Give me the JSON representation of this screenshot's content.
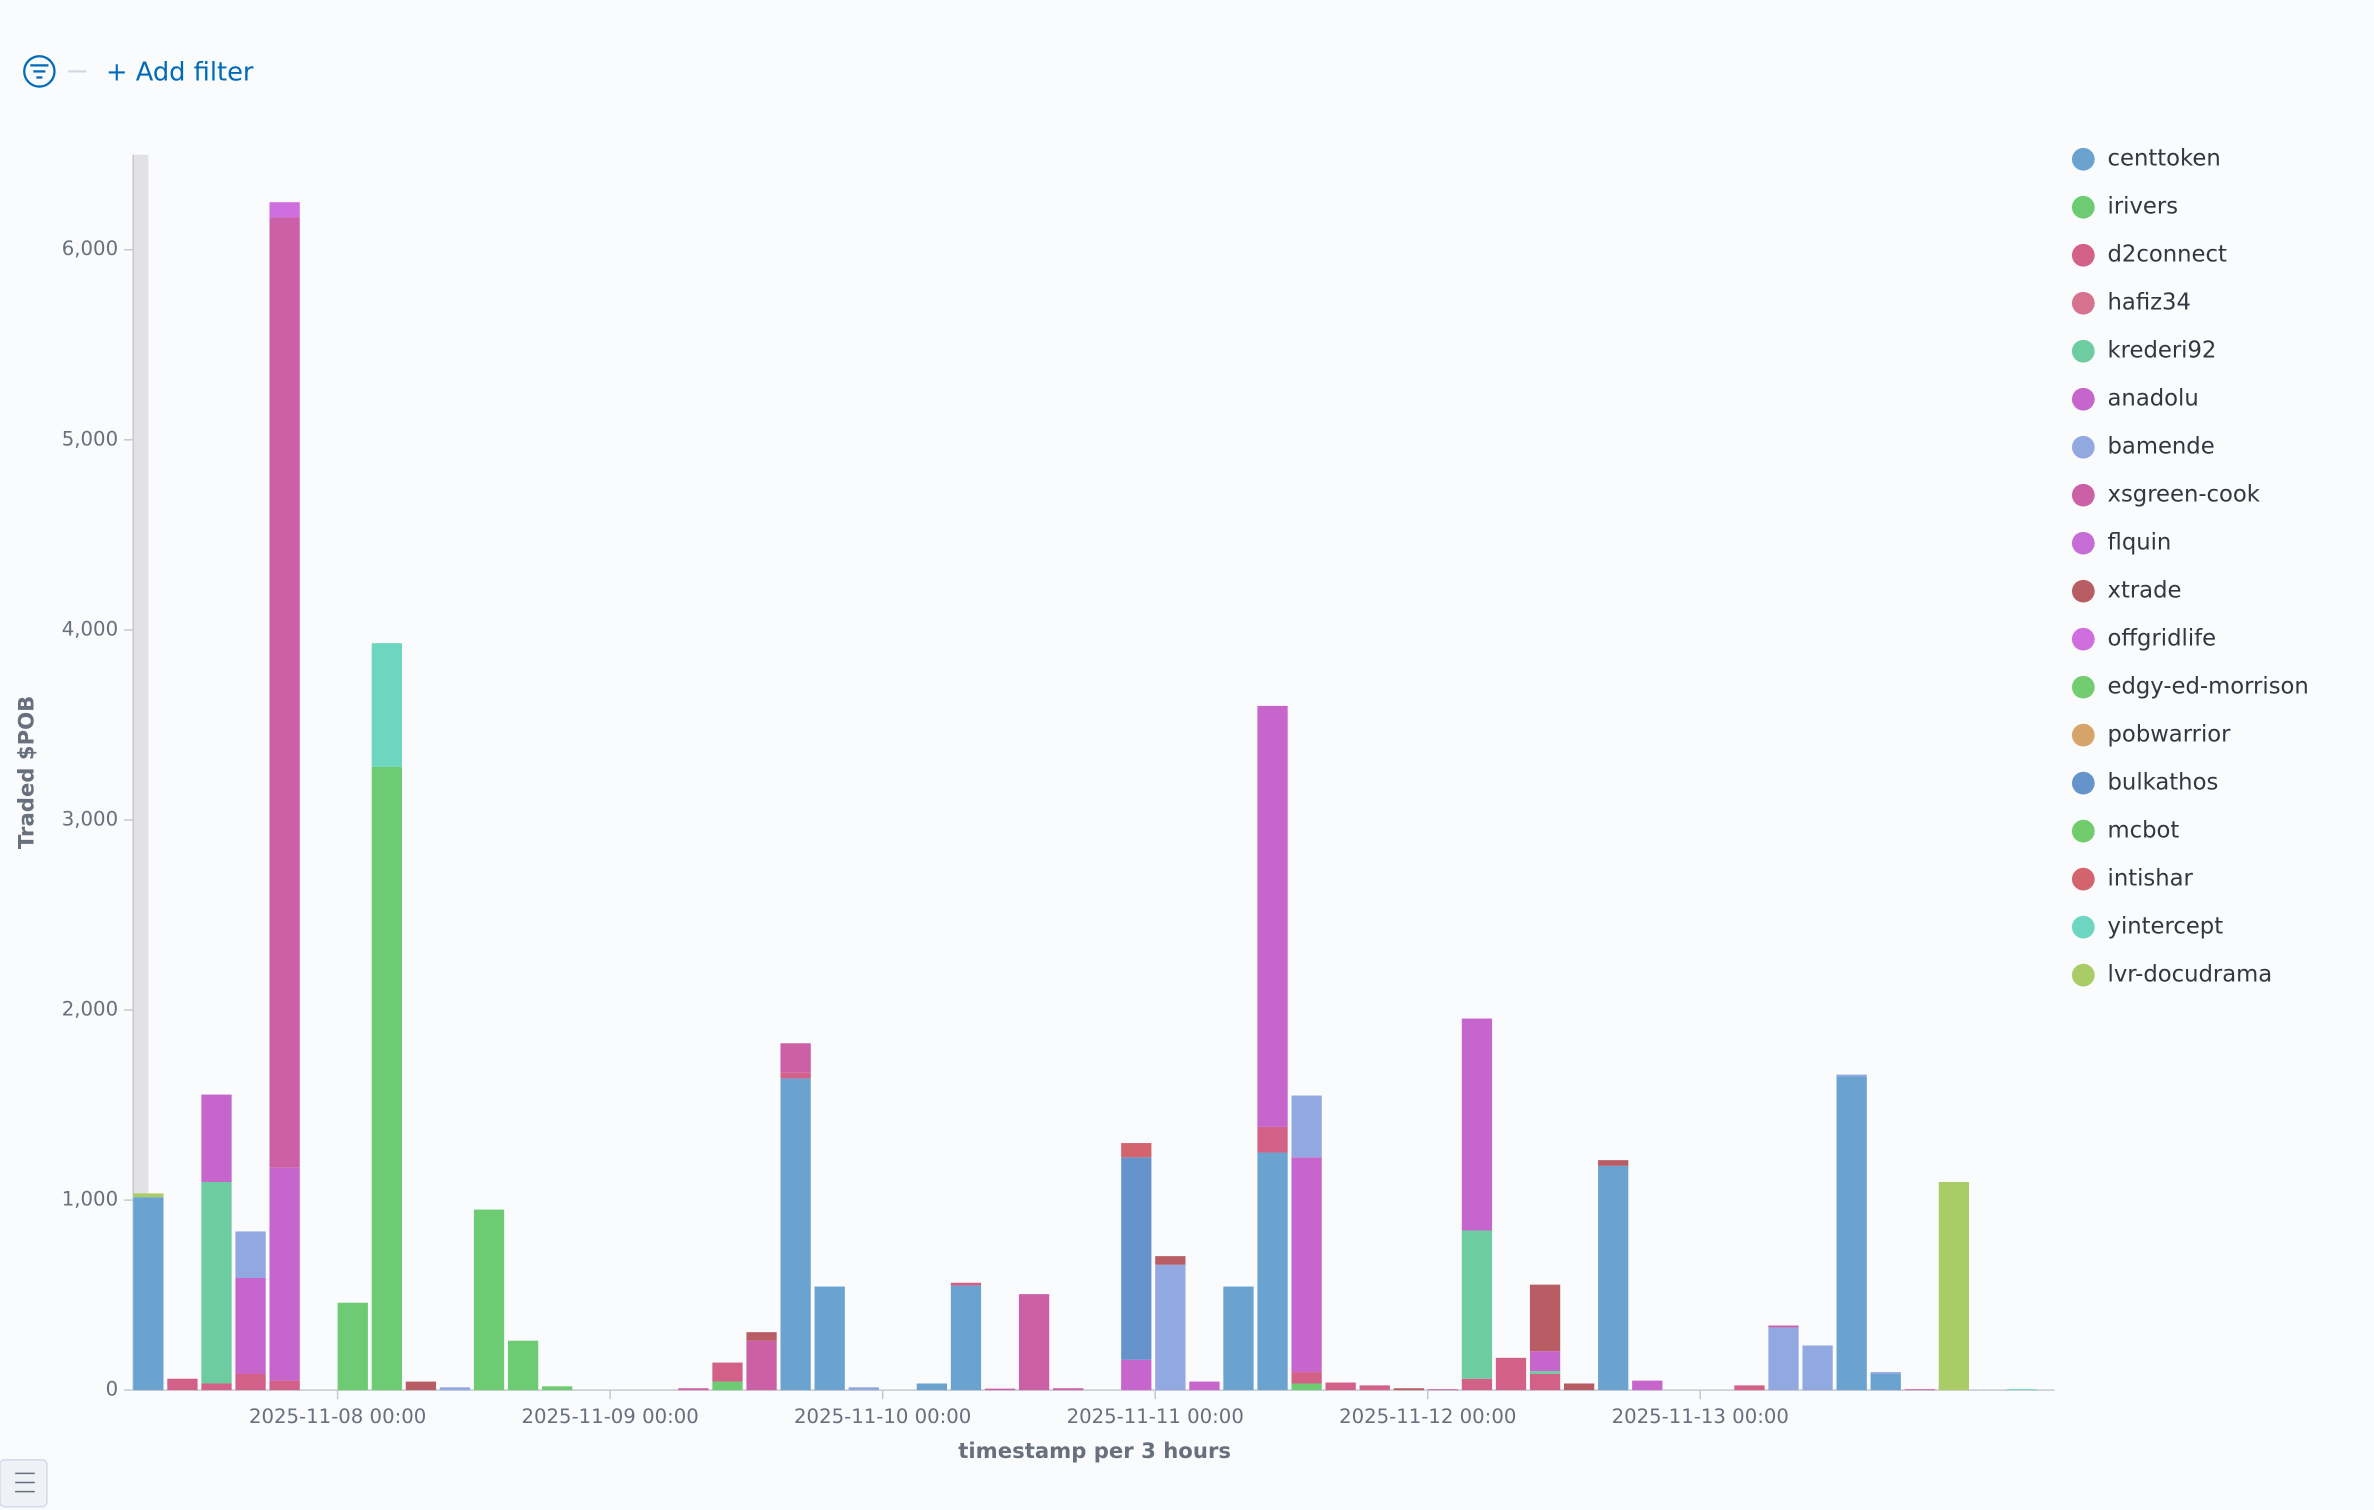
{
  "filter_bar": {
    "add_filter": "+ Add filter"
  },
  "chart_data": {
    "type": "stacked_bar",
    "y_label": "Traded $POB",
    "x_label": "timestamp per 3 hours",
    "categories": [
      null,
      null,
      null,
      null,
      null,
      null,
      "2025-11-08 00:00",
      null,
      null,
      null,
      null,
      null,
      null,
      null,
      "2025-11-09 00:00",
      null,
      null,
      null,
      null,
      null,
      null,
      null,
      "2025-11-10 00:00",
      null,
      null,
      null,
      null,
      null,
      null,
      null,
      "2025-11-11 00:00",
      null,
      null,
      null,
      null,
      null,
      null,
      null,
      "2025-11-12 00:00",
      null,
      null,
      null,
      null,
      null,
      null,
      null,
      "2025-11-13 00:00",
      null,
      null,
      null,
      null,
      null,
      null,
      null,
      null,
      null
    ],
    "ylim": [
      0,
      6500
    ],
    "yticks": [
      0,
      {
        "value": 1000,
        "label": "1,000"
      },
      {
        "value": 2000,
        "label": "2,000"
      },
      {
        "value": 3000,
        "label": "3,000"
      },
      {
        "value": 4000,
        "label": "4,000"
      },
      {
        "value": 5000,
        "label": "5,000"
      },
      {
        "value": 6000,
        "label": "6,000"
      }
    ],
    "grid": false,
    "legend": "right",
    "series": [
      {
        "name": "centtoken",
        "color": "#6aa3d0",
        "values": [
          1015,
          0,
          0,
          0,
          0,
          0,
          0,
          0,
          0,
          0,
          0,
          0,
          0,
          0,
          0,
          0,
          0,
          0,
          0,
          1640,
          545,
          0,
          0,
          35,
          550,
          0,
          0,
          0,
          0,
          0,
          0,
          0,
          545,
          1250,
          0,
          0,
          0,
          0,
          0,
          0,
          0,
          0,
          0,
          1180,
          0,
          0,
          0,
          0,
          0,
          0,
          1650,
          85,
          0,
          0,
          0,
          0
        ]
      },
      {
        "name": "irivers",
        "color": "#6dcc73",
        "values": [
          0,
          0,
          0,
          0,
          0,
          0,
          460,
          3280,
          0,
          0,
          950,
          260,
          20,
          0,
          0,
          0,
          0,
          45,
          0,
          0,
          0,
          0,
          0,
          0,
          0,
          0,
          0,
          0,
          0,
          0,
          0,
          0,
          0,
          0,
          35,
          0,
          0,
          0,
          0,
          0,
          0,
          0,
          0,
          0,
          0,
          0,
          0,
          0,
          0,
          0,
          0,
          0,
          0,
          0,
          0,
          0
        ]
      },
      {
        "name": "d2connect",
        "color": "#d36086",
        "values": [
          0,
          60,
          35,
          85,
          50,
          0,
          0,
          0,
          0,
          0,
          0,
          0,
          0,
          0,
          0,
          0,
          0,
          100,
          0,
          30,
          0,
          0,
          0,
          0,
          15,
          0,
          0,
          0,
          0,
          0,
          0,
          0,
          0,
          135,
          60,
          40,
          25,
          0,
          0,
          60,
          170,
          85,
          0,
          0,
          0,
          0,
          0,
          25,
          0,
          0,
          0,
          0,
          0,
          0,
          0,
          0
        ]
      },
      {
        "name": "hafiz34",
        "color": "#d6728e",
        "values": [
          0,
          0,
          0,
          0,
          0,
          0,
          0,
          0,
          0,
          0,
          0,
          0,
          0,
          0,
          0,
          0,
          0,
          0,
          0,
          0,
          0,
          0,
          0,
          0,
          0,
          0,
          0,
          0,
          0,
          0,
          0,
          0,
          0,
          0,
          0,
          0,
          0,
          0,
          0,
          0,
          0,
          0,
          0,
          0,
          0,
          0,
          0,
          0,
          0,
          0,
          0,
          0,
          0,
          0,
          0,
          0
        ]
      },
      {
        "name": "krederi92",
        "color": "#6dcca0",
        "values": [
          0,
          0,
          1060,
          0,
          0,
          0,
          0,
          0,
          0,
          0,
          0,
          0,
          0,
          0,
          0,
          0,
          0,
          0,
          0,
          0,
          0,
          0,
          0,
          0,
          0,
          0,
          0,
          0,
          0,
          0,
          0,
          0,
          0,
          0,
          0,
          0,
          0,
          0,
          0,
          780,
          0,
          15,
          0,
          0,
          0,
          0,
          0,
          0,
          0,
          0,
          0,
          0,
          0,
          0,
          0,
          0
        ]
      },
      {
        "name": "anadolu",
        "color": "#c666cc",
        "values": [
          0,
          0,
          460,
          505,
          1120,
          0,
          0,
          0,
          0,
          0,
          0,
          0,
          0,
          0,
          0,
          0,
          0,
          0,
          0,
          0,
          0,
          0,
          0,
          0,
          0,
          0,
          0,
          0,
          0,
          160,
          0,
          45,
          0,
          2215,
          1130,
          0,
          0,
          0,
          0,
          1115,
          0,
          105,
          0,
          0,
          50,
          0,
          0,
          0,
          0,
          0,
          0,
          0,
          0,
          0,
          0,
          0
        ]
      },
      {
        "name": "bamende",
        "color": "#92a8e0",
        "values": [
          0,
          0,
          0,
          245,
          0,
          0,
          0,
          0,
          0,
          15,
          0,
          0,
          0,
          0,
          0,
          0,
          0,
          0,
          0,
          0,
          0,
          15,
          0,
          0,
          0,
          0,
          0,
          0,
          0,
          0,
          660,
          0,
          0,
          0,
          325,
          0,
          0,
          0,
          0,
          0,
          0,
          0,
          0,
          0,
          0,
          0,
          0,
          0,
          330,
          235,
          10,
          10,
          0,
          0,
          0,
          0
        ]
      },
      {
        "name": "xsgreen-cook",
        "color": "#cc60a6",
        "values": [
          0,
          0,
          0,
          0,
          5000,
          0,
          0,
          0,
          0,
          0,
          0,
          0,
          0,
          0,
          0,
          0,
          10,
          0,
          260,
          155,
          0,
          0,
          0,
          0,
          0,
          8,
          505,
          10,
          0,
          0,
          0,
          0,
          0,
          0,
          0,
          0,
          0,
          0,
          5,
          0,
          0,
          0,
          0,
          0,
          0,
          0,
          0,
          0,
          10,
          0,
          0,
          0,
          5,
          0,
          0,
          0
        ]
      },
      {
        "name": "flquin",
        "color": "#c66cd6",
        "values": [
          0,
          0,
          0,
          0,
          0,
          0,
          0,
          0,
          0,
          0,
          0,
          0,
          0,
          0,
          0,
          0,
          0,
          0,
          0,
          0,
          0,
          0,
          0,
          0,
          0,
          0,
          0,
          0,
          0,
          0,
          0,
          0,
          0,
          0,
          0,
          0,
          0,
          0,
          0,
          0,
          0,
          0,
          0,
          0,
          0,
          0,
          0,
          0,
          0,
          0,
          0,
          0,
          0,
          0,
          0,
          0
        ]
      },
      {
        "name": "xtrade",
        "color": "#b85d63",
        "values": [
          0,
          0,
          0,
          0,
          0,
          0,
          0,
          0,
          45,
          0,
          0,
          0,
          0,
          0,
          0,
          0,
          0,
          0,
          45,
          0,
          0,
          0,
          0,
          0,
          0,
          0,
          0,
          0,
          0,
          0,
          45,
          0,
          0,
          0,
          0,
          0,
          0,
          10,
          0,
          0,
          0,
          350,
          35,
          30,
          0,
          0,
          0,
          0,
          0,
          0,
          0,
          0,
          0,
          0,
          0,
          0
        ]
      },
      {
        "name": "offgridlife",
        "color": "#cf6ede",
        "values": [
          0,
          0,
          0,
          0,
          80,
          0,
          0,
          0,
          0,
          0,
          0,
          0,
          0,
          0,
          0,
          0,
          0,
          0,
          0,
          0,
          0,
          0,
          0,
          0,
          0,
          0,
          0,
          0,
          0,
          0,
          0,
          0,
          0,
          0,
          0,
          0,
          0,
          0,
          0,
          0,
          0,
          0,
          0,
          0,
          0,
          0,
          0,
          0,
          0,
          0,
          0,
          0,
          0,
          0,
          0,
          0
        ]
      },
      {
        "name": "edgy-ed-morrison",
        "color": "#72cc70",
        "values": [
          0,
          0,
          0,
          0,
          0,
          0,
          0,
          0,
          0,
          0,
          0,
          0,
          0,
          0,
          0,
          0,
          0,
          0,
          0,
          0,
          0,
          0,
          0,
          0,
          0,
          0,
          0,
          0,
          0,
          0,
          0,
          0,
          0,
          0,
          0,
          0,
          0,
          0,
          0,
          0,
          0,
          0,
          0,
          0,
          0,
          0,
          0,
          0,
          0,
          0,
          0,
          0,
          0,
          0,
          0,
          0
        ]
      },
      {
        "name": "pobwarrior",
        "color": "#d6a46b",
        "values": [
          0,
          0,
          0,
          0,
          0,
          0,
          0,
          0,
          0,
          0,
          0,
          0,
          0,
          0,
          0,
          0,
          0,
          0,
          0,
          0,
          0,
          0,
          0,
          0,
          0,
          0,
          0,
          0,
          0,
          0,
          0,
          0,
          0,
          0,
          0,
          0,
          0,
          0,
          0,
          0,
          0,
          0,
          0,
          0,
          0,
          0,
          0,
          0,
          0,
          0,
          0,
          0,
          0,
          0,
          0,
          0
        ]
      },
      {
        "name": "bulkathos",
        "color": "#6693cc",
        "values": [
          0,
          0,
          0,
          0,
          0,
          0,
          0,
          0,
          0,
          0,
          0,
          0,
          0,
          0,
          0,
          0,
          0,
          0,
          0,
          0,
          0,
          0,
          0,
          0,
          0,
          0,
          0,
          0,
          0,
          1065,
          0,
          0,
          0,
          0,
          0,
          0,
          0,
          0,
          0,
          0,
          0,
          0,
          0,
          0,
          0,
          0,
          0,
          0,
          0,
          0,
          0,
          0,
          0,
          0,
          0,
          0
        ]
      },
      {
        "name": "mcbot",
        "color": "#70cc6c",
        "values": [
          0,
          0,
          0,
          0,
          0,
          0,
          0,
          0,
          0,
          0,
          0,
          0,
          0,
          0,
          0,
          0,
          0,
          0,
          0,
          0,
          0,
          0,
          0,
          0,
          0,
          0,
          0,
          0,
          0,
          0,
          0,
          0,
          0,
          0,
          0,
          0,
          0,
          0,
          0,
          0,
          0,
          0,
          0,
          0,
          0,
          0,
          0,
          0,
          0,
          0,
          0,
          0,
          0,
          0,
          0,
          0
        ]
      },
      {
        "name": "intishar",
        "color": "#d3646e",
        "values": [
          0,
          0,
          0,
          0,
          0,
          0,
          0,
          0,
          0,
          0,
          0,
          0,
          0,
          0,
          0,
          0,
          0,
          0,
          0,
          0,
          0,
          0,
          0,
          0,
          0,
          0,
          0,
          0,
          0,
          75,
          0,
          0,
          0,
          0,
          0,
          0,
          0,
          0,
          0,
          0,
          0,
          0,
          0,
          0,
          0,
          0,
          0,
          0,
          0,
          0,
          0,
          0,
          0,
          0,
          0,
          0
        ]
      },
      {
        "name": "yintercept",
        "color": "#6dd6c0",
        "values": [
          0,
          0,
          0,
          0,
          0,
          0,
          0,
          650,
          0,
          0,
          0,
          0,
          0,
          0,
          0,
          0,
          0,
          0,
          0,
          0,
          0,
          0,
          0,
          0,
          0,
          0,
          0,
          0,
          0,
          0,
          0,
          0,
          0,
          0,
          0,
          0,
          0,
          0,
          0,
          0,
          0,
          0,
          0,
          0,
          0,
          0,
          0,
          0,
          0,
          0,
          0,
          0,
          0,
          0,
          0,
          5
        ]
      },
      {
        "name": "lvr-docudrama",
        "color": "#aacc66",
        "values": [
          20,
          0,
          0,
          0,
          0,
          0,
          0,
          0,
          0,
          0,
          0,
          0,
          0,
          0,
          0,
          0,
          0,
          0,
          0,
          0,
          0,
          0,
          0,
          0,
          0,
          0,
          0,
          0,
          0,
          0,
          0,
          0,
          0,
          0,
          0,
          0,
          0,
          0,
          0,
          0,
          0,
          0,
          0,
          0,
          0,
          0,
          0,
          0,
          0,
          0,
          0,
          0,
          0,
          1095,
          0,
          0
        ]
      }
    ]
  }
}
